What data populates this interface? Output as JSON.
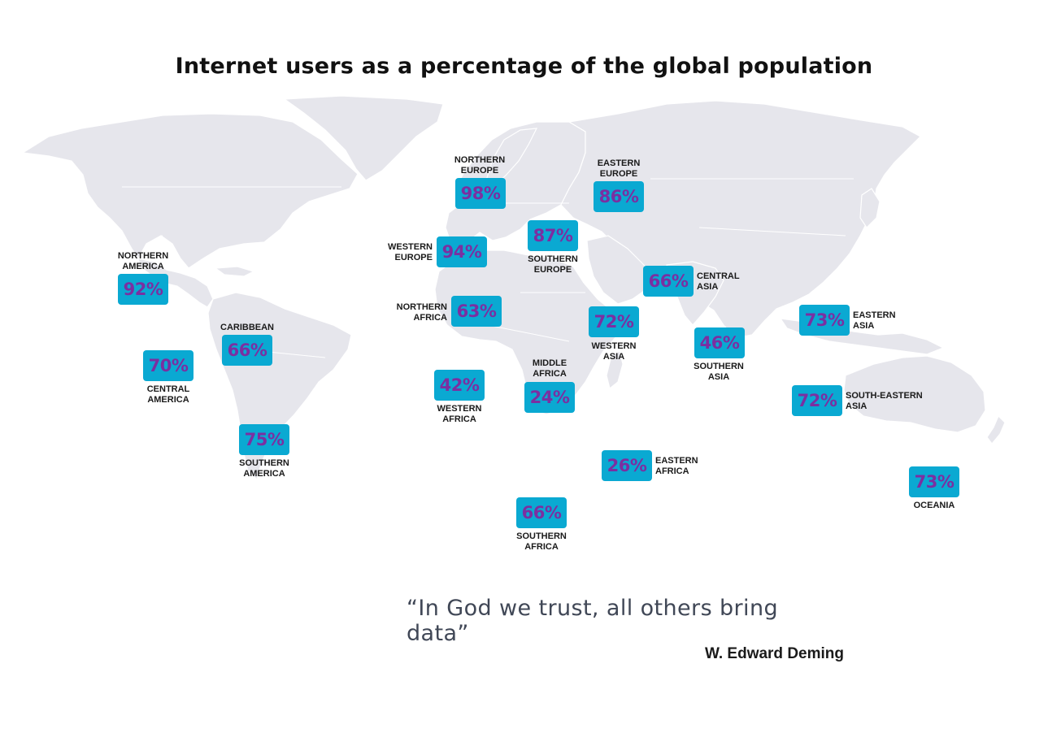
{
  "title": "Internet users as a percentage of the global population",
  "colors": {
    "badge_fill": "#0aa9d2",
    "badge_text": "#7b2fa1",
    "land": "#e6e6ec",
    "title": "#111111",
    "quote": "#404756"
  },
  "regions": [
    {
      "name": "NORTHERN\nAMERICA",
      "value": "92%"
    },
    {
      "name": "CENTRAL\nAMERICA",
      "value": "70%"
    },
    {
      "name": "CARIBBEAN",
      "value": "66%"
    },
    {
      "name": "SOUTHERN\nAMERICA",
      "value": "75%"
    },
    {
      "name": "NORTHERN\nEUROPE",
      "value": "98%"
    },
    {
      "name": "WESTERN\nEUROPE",
      "value": "94%"
    },
    {
      "name": "SOUTHERN\nEUROPE",
      "value": "87%"
    },
    {
      "name": "EASTERN\nEUROPE",
      "value": "86%"
    },
    {
      "name": "NORTHERN\nAFRICA",
      "value": "63%"
    },
    {
      "name": "WESTERN\nAFRICA",
      "value": "42%"
    },
    {
      "name": "MIDDLE\nAFRICA",
      "value": "24%"
    },
    {
      "name": "EASTERN\nAFRICA",
      "value": "26%"
    },
    {
      "name": "SOUTHERN\nAFRICA",
      "value": "66%"
    },
    {
      "name": "WESTERN\nASIA",
      "value": "72%"
    },
    {
      "name": "CENTRAL\nASIA",
      "value": "66%"
    },
    {
      "name": "SOUTHERN\nASIA",
      "value": "46%"
    },
    {
      "name": "EASTERN\nASIA",
      "value": "73%"
    },
    {
      "name": "SOUTH-EASTERN\nASIA",
      "value": "72%"
    },
    {
      "name": "OCEANIA",
      "value": "73%"
    }
  ],
  "quote": "“In God we trust, all others bring data”",
  "author": "W. Edward Deming"
}
